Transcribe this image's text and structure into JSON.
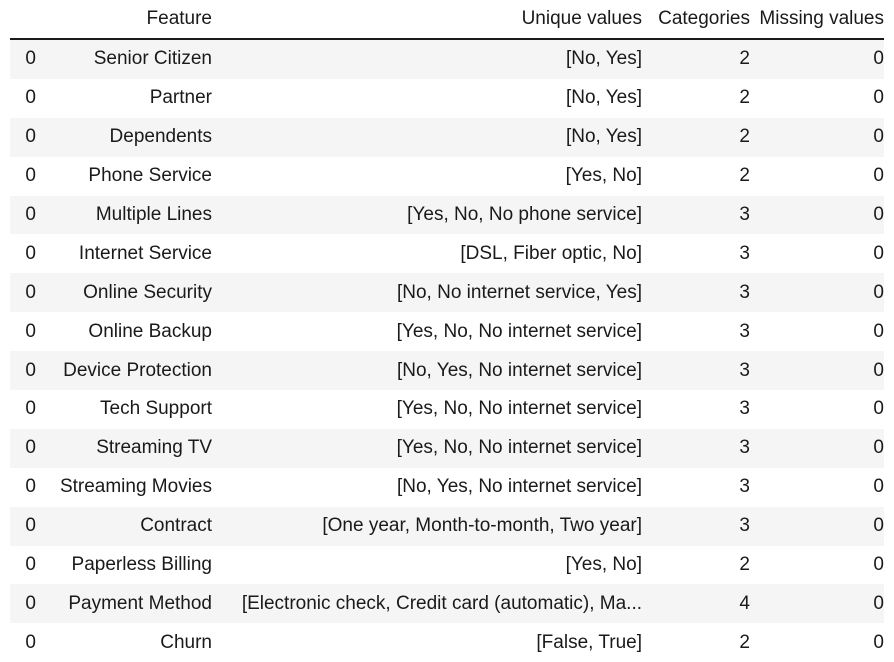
{
  "table": {
    "columns": [
      "",
      "Feature",
      "Unique values",
      "Categories",
      "Missing values"
    ],
    "rows": [
      {
        "index": "0",
        "feature": "Senior Citizen",
        "unique": "[No, Yes]",
        "categories": "2",
        "missing": "0"
      },
      {
        "index": "0",
        "feature": "Partner",
        "unique": "[No, Yes]",
        "categories": "2",
        "missing": "0"
      },
      {
        "index": "0",
        "feature": "Dependents",
        "unique": "[No, Yes]",
        "categories": "2",
        "missing": "0"
      },
      {
        "index": "0",
        "feature": "Phone Service",
        "unique": "[Yes, No]",
        "categories": "2",
        "missing": "0"
      },
      {
        "index": "0",
        "feature": "Multiple Lines",
        "unique": "[Yes, No, No phone service]",
        "categories": "3",
        "missing": "0"
      },
      {
        "index": "0",
        "feature": "Internet Service",
        "unique": "[DSL, Fiber optic, No]",
        "categories": "3",
        "missing": "0"
      },
      {
        "index": "0",
        "feature": "Online Security",
        "unique": "[No, No internet service, Yes]",
        "categories": "3",
        "missing": "0"
      },
      {
        "index": "0",
        "feature": "Online Backup",
        "unique": "[Yes, No, No internet service]",
        "categories": "3",
        "missing": "0"
      },
      {
        "index": "0",
        "feature": "Device Protection",
        "unique": "[No, Yes, No internet service]",
        "categories": "3",
        "missing": "0"
      },
      {
        "index": "0",
        "feature": "Tech Support",
        "unique": "[Yes, No, No internet service]",
        "categories": "3",
        "missing": "0"
      },
      {
        "index": "0",
        "feature": "Streaming TV",
        "unique": "[Yes, No, No internet service]",
        "categories": "3",
        "missing": "0"
      },
      {
        "index": "0",
        "feature": "Streaming Movies",
        "unique": "[No, Yes, No internet service]",
        "categories": "3",
        "missing": "0"
      },
      {
        "index": "0",
        "feature": "Contract",
        "unique": "[One year, Month-to-month, Two year]",
        "categories": "3",
        "missing": "0"
      },
      {
        "index": "0",
        "feature": "Paperless Billing",
        "unique": "[Yes, No]",
        "categories": "2",
        "missing": "0"
      },
      {
        "index": "0",
        "feature": "Payment Method",
        "unique": "[Electronic check, Credit card (automatic), Ma...",
        "categories": "4",
        "missing": "0"
      },
      {
        "index": "0",
        "feature": "Churn",
        "unique": "[False, True]",
        "categories": "2",
        "missing": "0"
      }
    ]
  }
}
